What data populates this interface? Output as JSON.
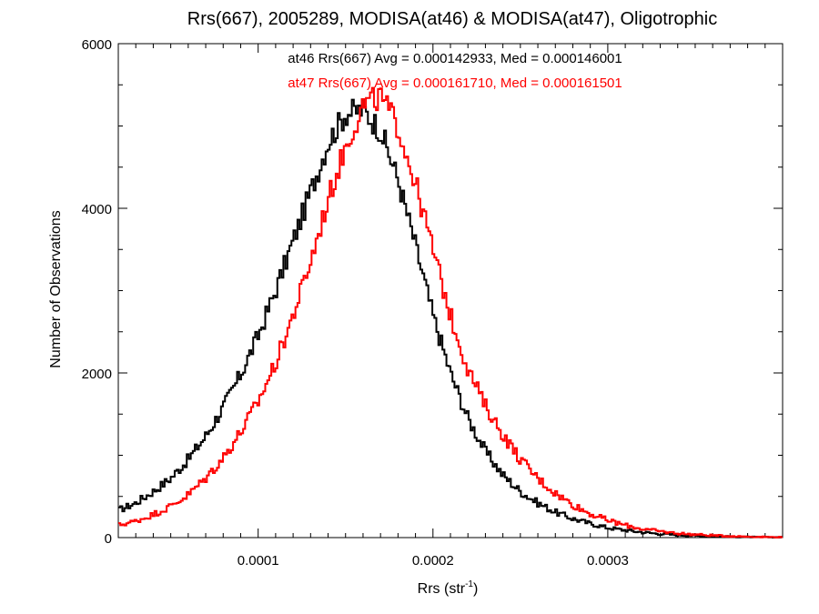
{
  "chart_data": {
    "type": "line",
    "title": "Rrs(667), 2005289, MODISA(at46) & MODISA(at47), Oligotrophic",
    "xlabel": "Rrs (str",
    "xlabel_sup": "-1",
    "xlabel_close": ")",
    "ylabel": "Number of Observations",
    "xlim": [
      2e-05,
      0.0004
    ],
    "ylim": [
      0,
      6000
    ],
    "x_ticks": [
      {
        "value": 0.0001,
        "label": "0.0001"
      },
      {
        "value": 0.0002,
        "label": "0.0002"
      },
      {
        "value": 0.0003,
        "label": "0.0003"
      }
    ],
    "y_ticks": [
      {
        "value": 0,
        "label": "0"
      },
      {
        "value": 2000,
        "label": "2000"
      },
      {
        "value": 4000,
        "label": "4000"
      },
      {
        "value": 6000,
        "label": "6000"
      }
    ],
    "grid": false,
    "series": [
      {
        "name": "at46",
        "color": "#000000",
        "stats_text": "at46 Rrs(667) Avg = 0.000142933, Med = 0.000146001",
        "x": [
          2e-05,
          3e-05,
          4e-05,
          5e-05,
          6e-05,
          7e-05,
          8e-05,
          9e-05,
          0.0001,
          0.00011,
          0.00012,
          0.00013,
          0.00014,
          0.00015,
          0.00016,
          0.00017,
          0.00018,
          0.00019,
          0.0002,
          0.00021,
          0.00022,
          0.00023,
          0.00024,
          0.00025,
          0.00026,
          0.00027,
          0.00028,
          0.00029,
          0.0003,
          0.00031,
          0.00032,
          0.00033,
          0.00034,
          0.00035,
          0.00036,
          0.00037,
          0.00038,
          0.00039,
          0.0004
        ],
        "values": [
          330,
          420,
          560,
          720,
          950,
          1230,
          1580,
          1980,
          2450,
          3000,
          3600,
          4200,
          4800,
          5150,
          5200,
          4950,
          4350,
          3550,
          2700,
          2000,
          1450,
          1050,
          760,
          560,
          420,
          310,
          230,
          170,
          120,
          90,
          65,
          45,
          32,
          22,
          16,
          11,
          8,
          5,
          4
        ]
      },
      {
        "name": "at47",
        "color": "#ff0000",
        "stats_text": "at47 Rrs(667) Avg = 0.000161710, Med = 0.000161501",
        "x": [
          2e-05,
          3e-05,
          4e-05,
          5e-05,
          6e-05,
          7e-05,
          8e-05,
          9e-05,
          0.0001,
          0.00011,
          0.00012,
          0.00013,
          0.00014,
          0.00015,
          0.00016,
          0.00017,
          0.00018,
          0.00019,
          0.0002,
          0.00021,
          0.00022,
          0.00023,
          0.00024,
          0.00025,
          0.00026,
          0.00027,
          0.00028,
          0.00029,
          0.0003,
          0.00031,
          0.00032,
          0.00033,
          0.00034,
          0.00035,
          0.00036,
          0.00037,
          0.00038,
          0.00039,
          0.0004
        ],
        "values": [
          150,
          200,
          280,
          380,
          520,
          720,
          970,
          1280,
          1650,
          2120,
          2700,
          3350,
          4100,
          4750,
          5250,
          5350,
          5000,
          4300,
          3500,
          2700,
          2050,
          1600,
          1250,
          950,
          720,
          540,
          400,
          290,
          210,
          150,
          105,
          75,
          52,
          37,
          26,
          18,
          12,
          8,
          5
        ]
      }
    ]
  }
}
